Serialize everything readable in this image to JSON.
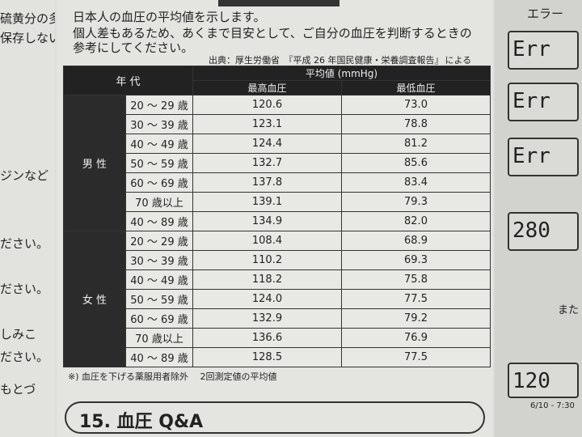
{
  "left_fragments": [
    "硫黄分の多",
    "保存しない",
    "ジンなど",
    "ださい。",
    "ださい。",
    "しみこ",
    "ださい。",
    "もとづ"
  ],
  "intro_lines": [
    "日本人の血圧の平均値を示します。",
    "個人差もあるため、あくまで目安として、ご自分の血圧を判断するときの",
    "参考にしてください。"
  ],
  "source": {
    "prefix": "出典：厚生労働省",
    "title": "平成 26 年国民健康・栄養調査報告",
    "suffix": "による"
  },
  "table": {
    "col_age": "年 代",
    "col_avg": "平均値 (mmHg)",
    "col_sys": "最高血圧",
    "col_dia": "最低血圧",
    "groups": [
      {
        "label": "男 性",
        "rows": [
          {
            "age": "20 ～ 29 歳",
            "sys": "120.6",
            "dia": "73.0"
          },
          {
            "age": "30 ～ 39 歳",
            "sys": "123.1",
            "dia": "78.8"
          },
          {
            "age": "40 ～ 49 歳",
            "sys": "124.4",
            "dia": "81.2"
          },
          {
            "age": "50 ～ 59 歳",
            "sys": "132.7",
            "dia": "85.6"
          },
          {
            "age": "60 ～ 69 歳",
            "sys": "137.8",
            "dia": "83.4"
          },
          {
            "age": "70 歳以上",
            "sys": "139.1",
            "dia": "79.3"
          },
          {
            "age": "40 ～ 89 歳",
            "sys": "134.9",
            "dia": "82.0"
          }
        ]
      },
      {
        "label": "女 性",
        "rows": [
          {
            "age": "20 ～ 29 歳",
            "sys": "108.4",
            "dia": "68.9"
          },
          {
            "age": "30 ～ 39 歳",
            "sys": "110.2",
            "dia": "69.3"
          },
          {
            "age": "40 ～ 49 歳",
            "sys": "118.2",
            "dia": "75.8"
          },
          {
            "age": "50 ～ 59 歳",
            "sys": "124.0",
            "dia": "77.5"
          },
          {
            "age": "60 ～ 69 歳",
            "sys": "132.9",
            "dia": "79.2"
          },
          {
            "age": "70 歳以上",
            "sys": "136.6",
            "dia": "76.9"
          },
          {
            "age": "40 ～ 89 歳",
            "sys": "128.5",
            "dia": "77.5"
          }
        ]
      }
    ]
  },
  "footnote": "※) 血圧を下げる薬服用者除外　 2回測定値の平均値",
  "section_title": "15. 血圧 Q&A",
  "right": {
    "header": "エラー",
    "lcd": [
      "Err",
      "Err",
      "Err",
      "280"
    ],
    "mata": "また",
    "reading": "120",
    "date": "6/10 - 7:30"
  }
}
